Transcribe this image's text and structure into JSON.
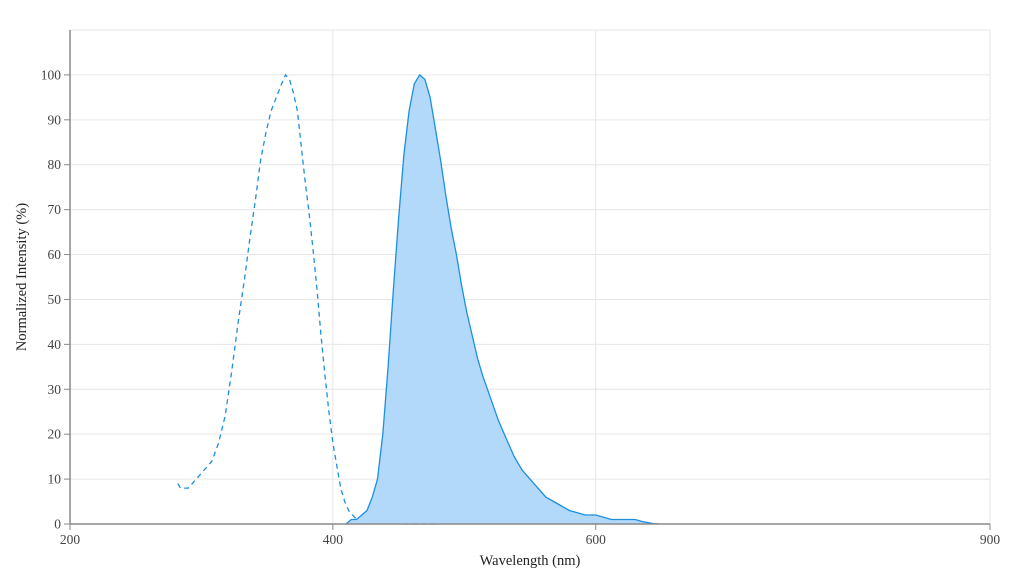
{
  "chart_data": {
    "type": "area",
    "title": "",
    "xlabel": "Wavelength (nm)",
    "ylabel": "Normalized Intensity (%)",
    "xlim": [
      200,
      900
    ],
    "ylim": [
      0,
      110
    ],
    "x_ticks": [
      200,
      400,
      600,
      900
    ],
    "y_ticks": [
      0,
      10,
      20,
      30,
      40,
      50,
      60,
      70,
      80,
      90,
      100
    ],
    "grid": true,
    "legend": "none",
    "series": [
      {
        "style": "dashed-line",
        "color": "#1a8fe3",
        "x": [
          282,
          284,
          290,
          296,
          302,
          308,
          313,
          318,
          323,
          328,
          333,
          337,
          341,
          345,
          349,
          353,
          357,
          361,
          364,
          367,
          370,
          373,
          376,
          379,
          382,
          385,
          388,
          391,
          394,
          397,
          400,
          403,
          406,
          409,
          412,
          415,
          418,
          421,
          425,
          430,
          435,
          440,
          445,
          450,
          455,
          460,
          470,
          480
        ],
        "y": [
          9,
          8,
          8,
          10,
          12,
          14,
          18,
          24,
          34,
          45,
          55,
          64,
          72,
          81,
          87,
          92,
          95,
          98,
          100,
          99,
          96,
          92,
          84,
          76,
          69,
          61,
          52,
          42,
          33,
          25,
          18,
          13,
          8,
          5,
          3,
          2,
          1,
          1,
          1,
          0.5,
          0.3,
          0.2,
          0.1,
          0.1,
          0,
          0,
          0,
          0
        ]
      },
      {
        "style": "filled-area",
        "color": "#1a8fe3",
        "fill": "#b3d9fa",
        "x": [
          410,
          414,
          418,
          422,
          426,
          430,
          434,
          438,
          442,
          446,
          450,
          454,
          458,
          462,
          466,
          470,
          474,
          478,
          482,
          486,
          490,
          494,
          498,
          502,
          506,
          510,
          514,
          520,
          526,
          532,
          538,
          544,
          550,
          556,
          562,
          568,
          574,
          580,
          586,
          592,
          600,
          606,
          612,
          618,
          624,
          630,
          636,
          640,
          644,
          648
        ],
        "y": [
          0,
          1,
          1,
          2,
          3,
          6,
          10,
          20,
          35,
          52,
          68,
          82,
          92,
          98,
          100,
          99,
          95,
          88,
          81,
          73,
          66,
          60,
          53,
          47,
          42,
          37,
          33,
          28,
          23,
          19,
          15,
          12,
          10,
          8,
          6,
          5,
          4,
          3,
          2.5,
          2,
          2,
          1.5,
          1,
          1,
          1,
          1,
          0.5,
          0.3,
          0.1,
          0
        ]
      }
    ]
  }
}
